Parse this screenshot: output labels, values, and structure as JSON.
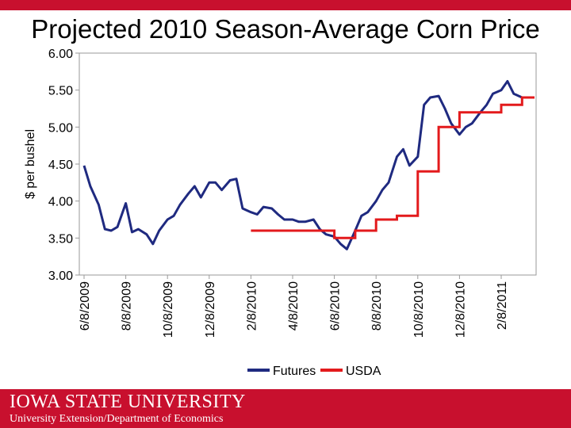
{
  "slide": {
    "title": "Projected 2010 Season-Average Corn Price",
    "footer_logo": "IOWA STATE UNIVERSITY",
    "footer_subtitle": "University Extension/Department of Economics"
  },
  "colors": {
    "accent": "#c8102e",
    "futures": "#1f2a80",
    "usda": "#e31a1c"
  },
  "chart_data": {
    "type": "line",
    "title": "Projected 2010 Season-Average Corn Price",
    "xlabel": "",
    "ylabel": "$ per bushel",
    "ylim": [
      3.0,
      6.0
    ],
    "yticks": [
      "3.00",
      "3.50",
      "4.00",
      "4.50",
      "5.00",
      "5.50",
      "6.00"
    ],
    "x_tick_labels": [
      "6/8/2009",
      "8/8/2009",
      "10/8/2009",
      "12/8/2009",
      "2/8/2010",
      "4/8/2010",
      "6/8/2010",
      "8/8/2010",
      "10/8/2010",
      "12/8/2010",
      "2/8/2011"
    ],
    "grid": false,
    "legend": "bottom-center",
    "series": [
      {
        "name": "Futures",
        "color": "#1f2a80",
        "x_month_index": [
          0,
          0.3,
          0.7,
          1.0,
          1.3,
          1.6,
          2.0,
          2.3,
          2.6,
          3.0,
          3.3,
          3.6,
          4.0,
          4.3,
          4.6,
          5.0,
          5.3,
          5.6,
          6.0,
          6.3,
          6.6,
          7.0,
          7.3,
          7.6,
          8.0,
          8.3,
          8.6,
          9.0,
          9.3,
          9.6,
          10.0,
          10.3,
          10.6,
          11.0,
          11.3,
          11.6,
          12.0,
          12.3,
          12.6,
          13.0,
          13.3,
          13.6,
          14.0,
          14.3,
          14.6,
          15.0,
          15.3,
          15.6,
          16.0,
          16.3,
          16.6,
          17.0,
          17.3,
          17.6,
          18.0,
          18.3,
          18.6,
          19.0,
          19.3,
          19.6,
          20.0,
          20.3,
          20.6,
          21.0
        ],
        "values": [
          4.48,
          4.2,
          3.95,
          3.62,
          3.6,
          3.65,
          3.97,
          3.58,
          3.62,
          3.55,
          3.42,
          3.6,
          3.75,
          3.8,
          3.95,
          4.1,
          4.2,
          4.05,
          4.25,
          4.25,
          4.15,
          4.28,
          4.3,
          3.9,
          3.85,
          3.82,
          3.92,
          3.9,
          3.82,
          3.75,
          3.75,
          3.72,
          3.72,
          3.75,
          3.62,
          3.55,
          3.52,
          3.42,
          3.35,
          3.6,
          3.8,
          3.85,
          4.0,
          4.15,
          4.25,
          4.6,
          4.7,
          4.48,
          4.6,
          5.3,
          5.4,
          5.42,
          5.25,
          5.05,
          4.9,
          5.0,
          5.05,
          5.2,
          5.3,
          5.45,
          5.5,
          5.62,
          5.45,
          5.4
        ]
      },
      {
        "name": "USDA",
        "color": "#e31a1c",
        "x_month_index": [
          8.0,
          9.0,
          10.0,
          11.0,
          12.0,
          13.0,
          14.0,
          15.0,
          16.0,
          17.0,
          18.0,
          19.0,
          20.0,
          21.0
        ],
        "values": [
          3.6,
          3.6,
          3.6,
          3.6,
          3.5,
          3.6,
          3.75,
          3.8,
          4.4,
          5.0,
          5.2,
          5.2,
          5.3,
          5.4
        ]
      }
    ]
  }
}
